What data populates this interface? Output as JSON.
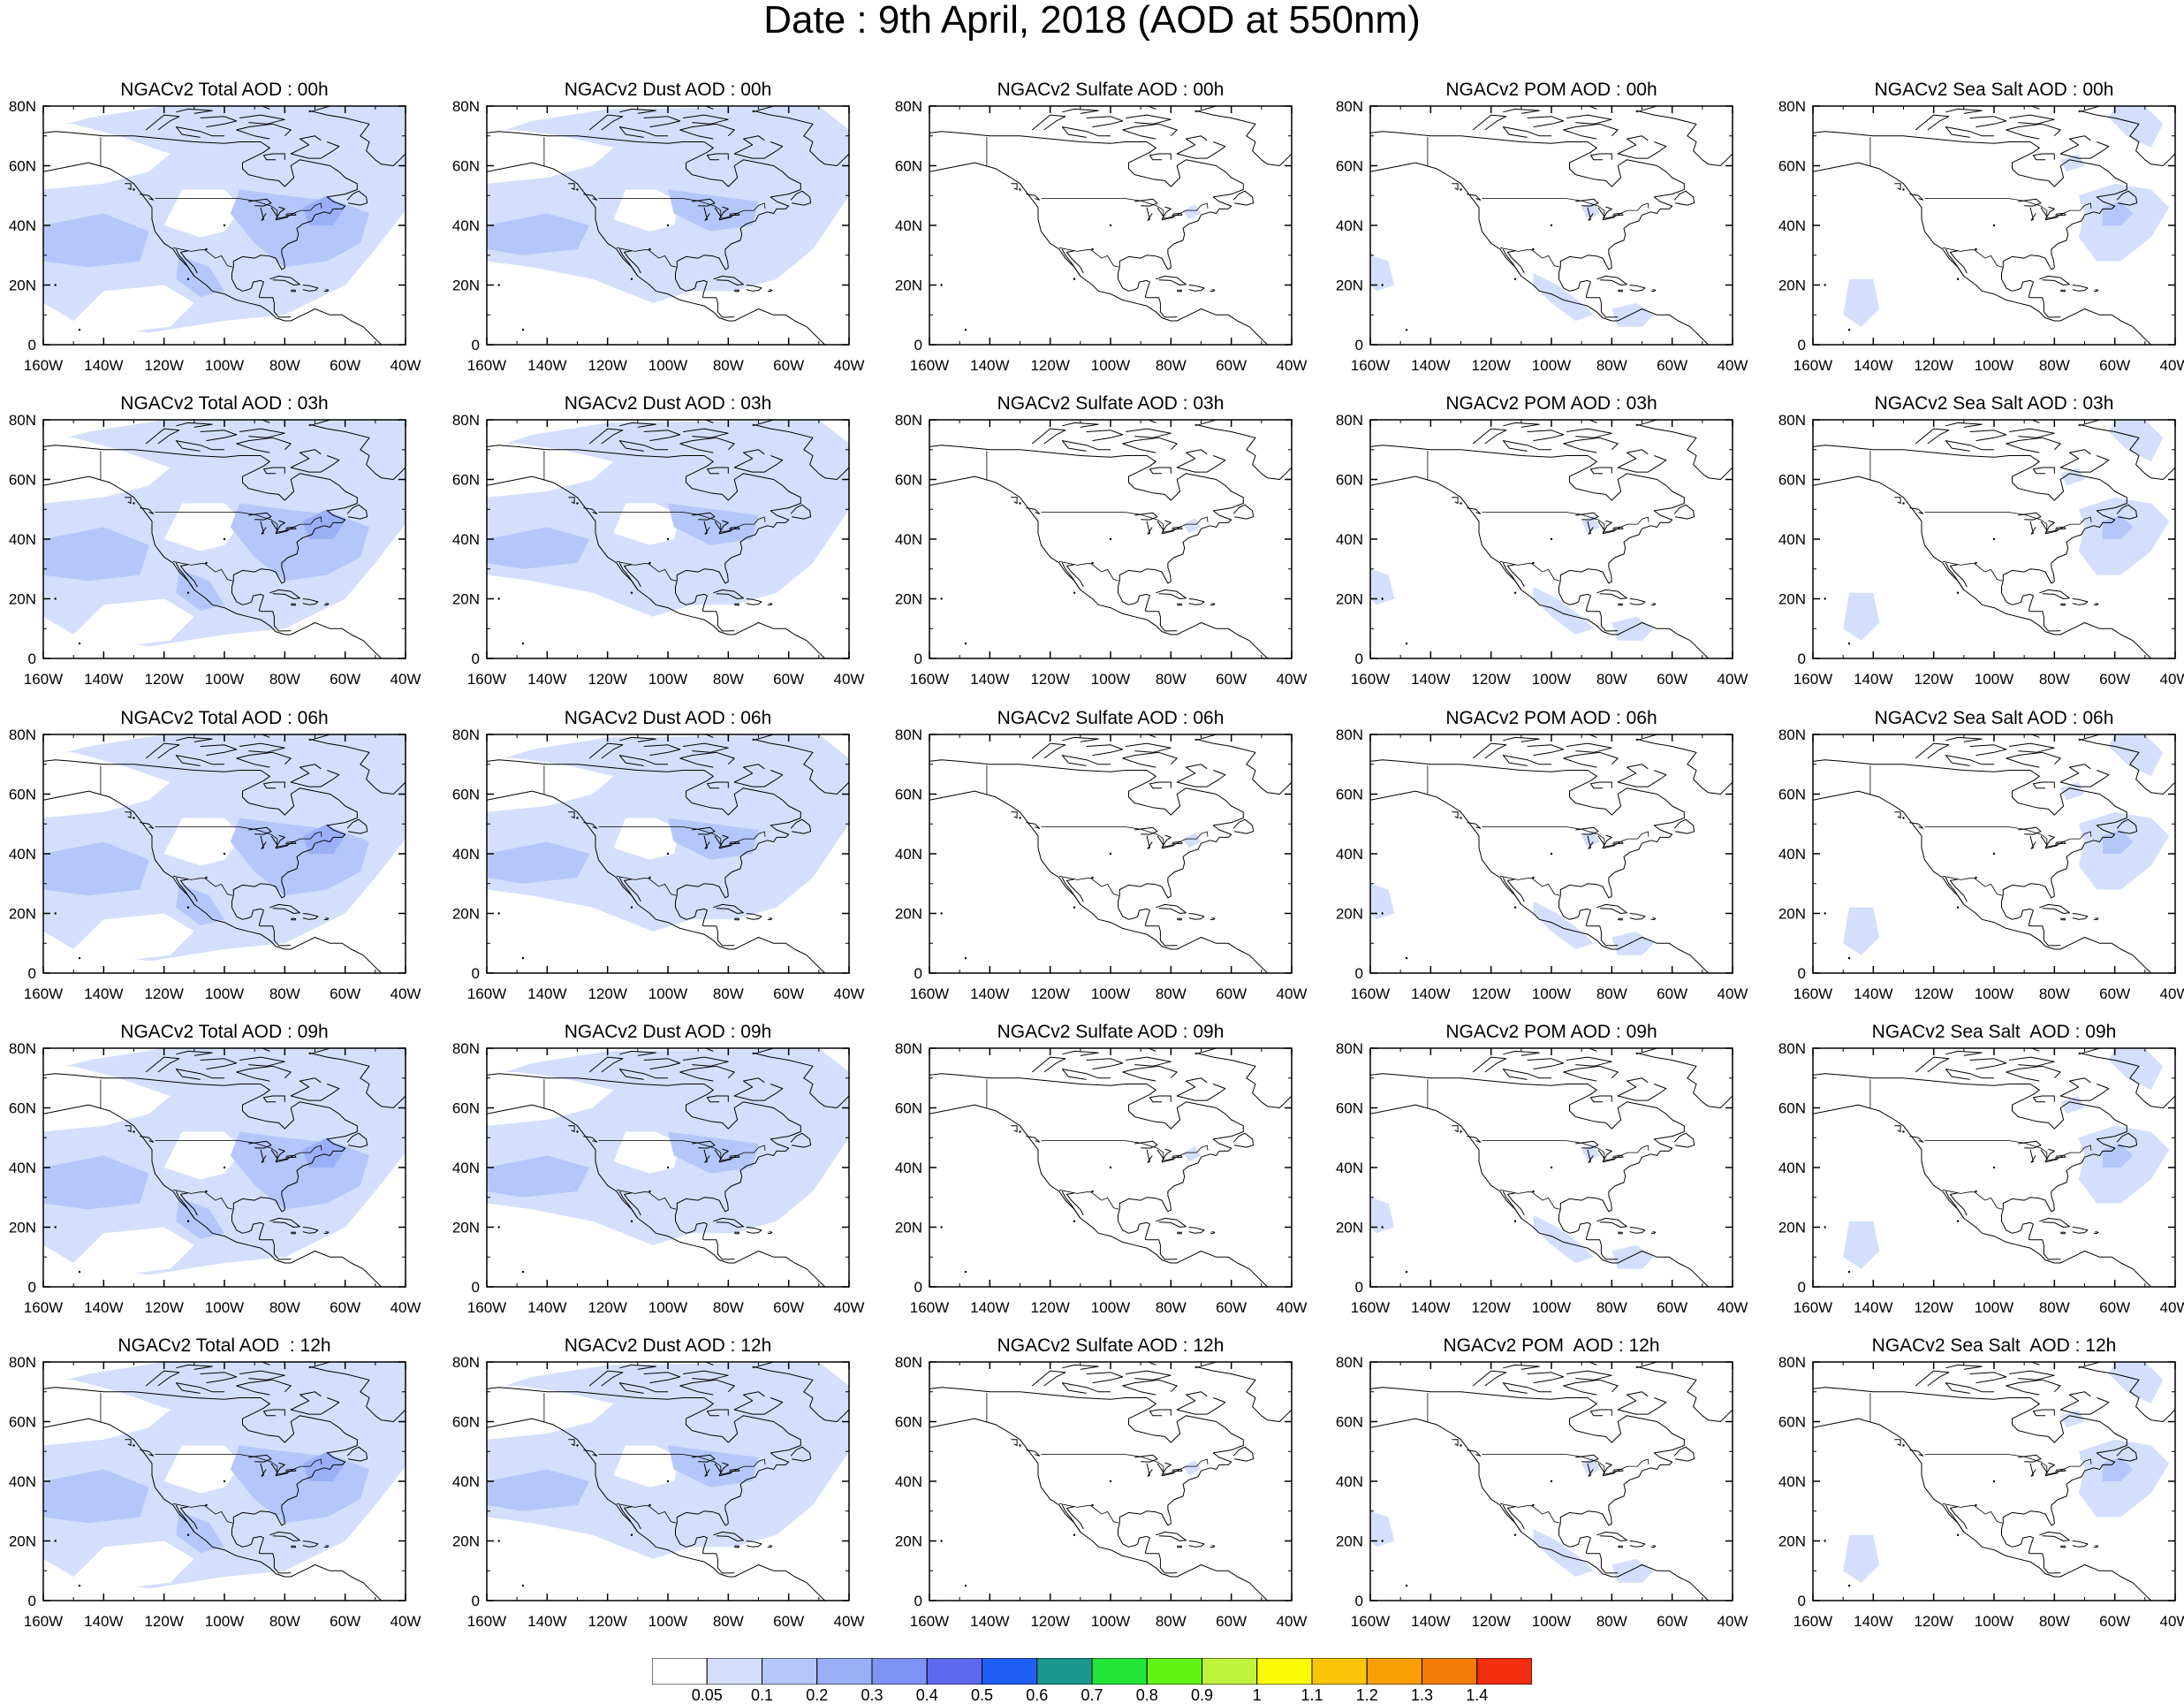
{
  "title": "Date : 9th April, 2018 (AOD at 550nm)",
  "map": {
    "lon_ticks": [
      "160W",
      "140W",
      "120W",
      "100W",
      "80W",
      "60W",
      "40W"
    ],
    "lat_ticks": [
      "0",
      "20N",
      "40N",
      "60N",
      "80N"
    ],
    "lon_range": [
      -160,
      -40
    ],
    "lat_range": [
      0,
      80
    ]
  },
  "panels": [
    [
      {
        "title": "NGACv2 Total AOD : 00h",
        "species": "total"
      },
      {
        "title": "NGACv2 Dust AOD : 00h",
        "species": "dust"
      },
      {
        "title": "NGACv2 Sulfate AOD : 00h",
        "species": "sulfate"
      },
      {
        "title": "NGACv2 POM AOD : 00h",
        "species": "pom"
      },
      {
        "title": "NGACv2 Sea Salt AOD : 00h",
        "species": "seasalt"
      }
    ],
    [
      {
        "title": "NGACv2 Total AOD : 03h",
        "species": "total"
      },
      {
        "title": "NGACv2 Dust AOD : 03h",
        "species": "dust"
      },
      {
        "title": "NGACv2 Sulfate AOD : 03h",
        "species": "sulfate"
      },
      {
        "title": "NGACv2 POM AOD : 03h",
        "species": "pom"
      },
      {
        "title": "NGACv2 Sea Salt AOD : 03h",
        "species": "seasalt"
      }
    ],
    [
      {
        "title": "NGACv2 Total AOD : 06h",
        "species": "total"
      },
      {
        "title": "NGACv2 Dust AOD : 06h",
        "species": "dust"
      },
      {
        "title": "NGACv2 Sulfate AOD : 06h",
        "species": "sulfate"
      },
      {
        "title": "NGACv2 POM AOD : 06h",
        "species": "pom"
      },
      {
        "title": "NGACv2 Sea Salt AOD : 06h",
        "species": "seasalt"
      }
    ],
    [
      {
        "title": "NGACv2 Total AOD : 09h",
        "species": "total"
      },
      {
        "title": "NGACv2 Dust AOD : 09h",
        "species": "dust"
      },
      {
        "title": "NGACv2 Sulfate AOD : 09h",
        "species": "sulfate"
      },
      {
        "title": "NGACv2 POM AOD : 09h",
        "species": "pom"
      },
      {
        "title": "NGACv2 Sea Salt  AOD : 09h",
        "species": "seasalt"
      }
    ],
    [
      {
        "title": "NGACv2 Total AOD  : 12h",
        "species": "total"
      },
      {
        "title": "NGACv2 Dust AOD : 12h",
        "species": "dust"
      },
      {
        "title": "NGACv2 Sulfate AOD : 12h",
        "species": "sulfate"
      },
      {
        "title": "NGACv2 POM  AOD : 12h",
        "species": "pom"
      },
      {
        "title": "NGACv2 Sea Salt  AOD : 12h",
        "species": "seasalt"
      }
    ]
  ],
  "colorbar": {
    "labels": [
      "0.05",
      "0.1",
      "0.2",
      "0.3",
      "0.4",
      "0.5",
      "0.6",
      "0.7",
      "0.8",
      "0.9",
      "1",
      "1.1",
      "1.2",
      "1.3",
      "1.4"
    ],
    "colors": [
      "#ffffff",
      "#d3dffc",
      "#b4c6fa",
      "#99b0f8",
      "#7f93f6",
      "#5e68ee",
      "#1f5ff6",
      "#1a9890",
      "#22e636",
      "#62f312",
      "#c0f33e",
      "#fbfb04",
      "#fbc406",
      "#f99e05",
      "#f47b06",
      "#f42c10"
    ]
  }
}
